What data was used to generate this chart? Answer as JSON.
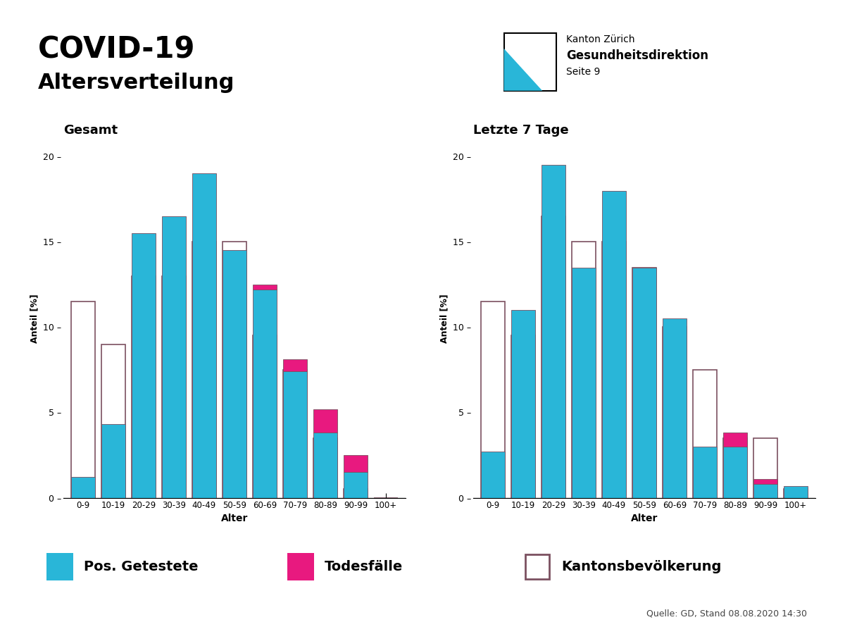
{
  "age_labels": [
    "0-9",
    "10-19",
    "20-29",
    "30-39",
    "40-49",
    "50-59",
    "60-69",
    "70-79",
    "80-89",
    "90-99",
    "100+"
  ],
  "gesamt_blue": [
    1.2,
    4.3,
    15.5,
    16.5,
    19.0,
    14.5,
    12.2,
    7.4,
    3.8,
    1.5,
    0.0
  ],
  "gesamt_pink": [
    0.0,
    0.0,
    0.0,
    0.0,
    0.0,
    0.0,
    0.3,
    0.7,
    1.4,
    1.0,
    0.0
  ],
  "gesamt_pop": [
    11.5,
    9.0,
    13.0,
    13.0,
    15.0,
    15.0,
    9.5,
    7.5,
    3.5,
    0.5,
    0.0
  ],
  "letzte_blue": [
    2.7,
    11.0,
    19.5,
    13.5,
    18.0,
    13.5,
    10.5,
    3.0,
    3.0,
    0.8,
    0.7
  ],
  "letzte_pink": [
    0.0,
    0.0,
    0.0,
    0.0,
    0.0,
    0.0,
    0.0,
    0.0,
    0.8,
    0.3,
    0.0
  ],
  "letzte_pop": [
    11.5,
    9.5,
    16.5,
    15.0,
    15.0,
    13.5,
    10.0,
    7.5,
    3.5,
    3.5,
    0.5
  ],
  "ylim": [
    0,
    21
  ],
  "yticks": [
    0,
    5,
    10,
    15,
    20
  ],
  "color_blue": "#29B6D8",
  "color_pink": "#E8197F",
  "color_pop_edge": "#7B5060",
  "color_pop_fill": "#FFFFFF",
  "title_main1": "COVID-19",
  "title_main2": "Altersverteilung",
  "subtitle_left": "Gesamt",
  "subtitle_right": "Letzte 7 Tage",
  "ylabel": "Anteil [%]",
  "xlabel": "Alter",
  "legend_blue": "Pos. Getestete",
  "legend_pink": "Todesfälle",
  "legend_pop": "Kantonsbevölkerung",
  "source_text": "Quelle: GD, Stand 08.08.2020 14:30",
  "logo_text1": "Kanton Zürich",
  "logo_text2": "Gesundheitsdirektion",
  "logo_text3": "Seite 9",
  "background_color": "#FFFFFF"
}
